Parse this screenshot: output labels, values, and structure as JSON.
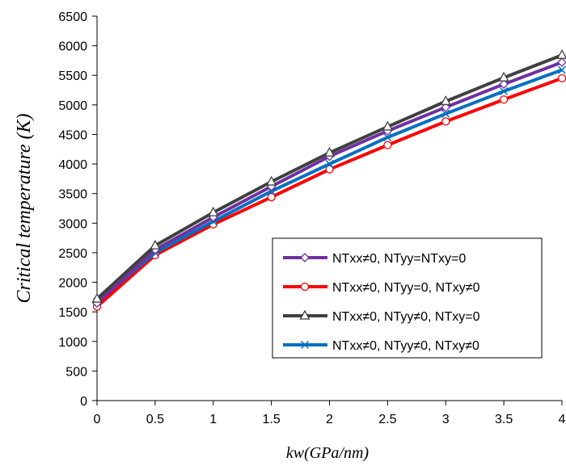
{
  "chart_data": {
    "type": "line",
    "title": "",
    "xlabel": "kw(GPa/nm)",
    "ylabel": "Critical temperature (K)",
    "x": [
      0,
      0.5,
      1,
      1.5,
      2,
      2.5,
      3,
      3.5,
      4
    ],
    "x_ticks": [
      "0",
      "0.5",
      "1",
      "1.5",
      "2",
      "2.5",
      "3",
      "3.5",
      "4"
    ],
    "xlim": [
      0,
      4
    ],
    "y_ticks": [
      "0",
      "500",
      "1000",
      "1500",
      "2000",
      "2500",
      "3000",
      "3500",
      "4000",
      "4500",
      "5000",
      "5500",
      "6000",
      "6500"
    ],
    "ylim": [
      0,
      6500
    ],
    "grid": false,
    "legend_position": "center-right",
    "series": [
      {
        "name": "NTxx≠0, NTyy=NTxy=0",
        "color": "#7030a0",
        "marker": "diamond",
        "values": [
          1650,
          2550,
          3100,
          3620,
          4130,
          4560,
          4960,
          5350,
          5720
        ]
      },
      {
        "name": "NTxx≠0, NTyy=0, NTxy≠0",
        "color": "#ff0000",
        "marker": "circle",
        "values": [
          1590,
          2460,
          2980,
          3440,
          3910,
          4320,
          4720,
          5090,
          5450
        ]
      },
      {
        "name": "NTxx≠0, NTyy≠0, NTxy=0",
        "color": "#404040",
        "marker": "triangle",
        "values": [
          1720,
          2620,
          3180,
          3700,
          4190,
          4630,
          5060,
          5460,
          5840
        ]
      },
      {
        "name": "NTxx≠0, NTyy≠0, NTxy≠0",
        "color": "#0070c0",
        "marker": "x",
        "values": [
          1670,
          2500,
          3030,
          3540,
          4000,
          4450,
          4850,
          5230,
          5590
        ]
      }
    ]
  }
}
